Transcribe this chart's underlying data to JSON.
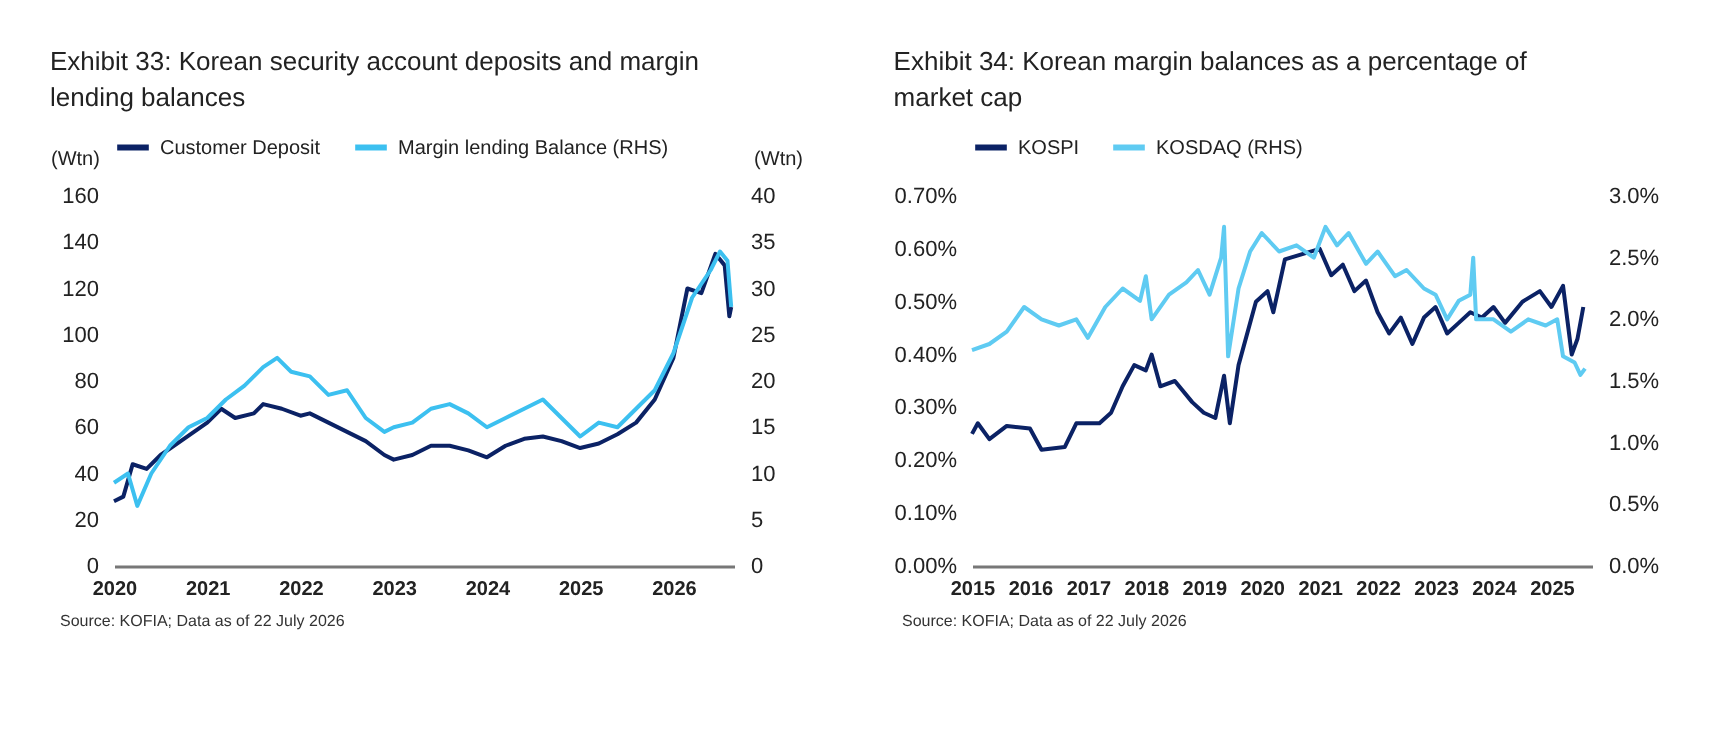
{
  "chart_data": [
    {
      "type": "line",
      "title": "Exhibit 33:  Korean security account deposits and margin lending balances",
      "ylabel": "(Wtn)",
      "y2label": "(Wtn)",
      "legend": "top",
      "grid": false,
      "marker": "none",
      "line_style": "solid",
      "xlim": [
        2020,
        2026.65
      ],
      "xticks": [
        2020,
        2021,
        2022,
        2023,
        2024,
        2025,
        2026
      ],
      "ylim": [
        0,
        160
      ],
      "yticks": [
        0,
        20,
        40,
        60,
        80,
        100,
        120,
        140,
        160
      ],
      "y2lim": [
        0,
        40
      ],
      "y2ticks": [
        0,
        5,
        10,
        15,
        20,
        25,
        30,
        35,
        40
      ],
      "series": [
        {
          "name": "Customer Deposit",
          "color": "#0b2265",
          "x": [
            2020.0,
            2020.1,
            2020.2,
            2020.35,
            2020.5,
            2020.75,
            2021.0,
            2021.15,
            2021.3,
            2021.5,
            2021.6,
            2021.8,
            2022.0,
            2022.1,
            2022.3,
            2022.5,
            2022.7,
            2022.9,
            2023.0,
            2023.2,
            2023.4,
            2023.6,
            2023.8,
            2024.0,
            2024.2,
            2024.4,
            2024.6,
            2024.8,
            2025.0,
            2025.2,
            2025.4,
            2025.6,
            2025.8,
            2026.0,
            2026.15,
            2026.3,
            2026.45,
            2026.55,
            2026.6,
            2026.62
          ],
          "values": [
            28,
            30,
            44,
            42,
            48,
            55,
            62,
            68,
            64,
            66,
            70,
            68,
            65,
            66,
            62,
            58,
            54,
            48,
            46,
            48,
            52,
            52,
            50,
            47,
            52,
            55,
            56,
            54,
            51,
            53,
            57,
            62,
            72,
            90,
            120,
            118,
            135,
            130,
            108,
            112
          ]
        },
        {
          "name": "Margin lending Balance (RHS)",
          "color": "#3cc0f0",
          "axis": "y2",
          "x": [
            2020.0,
            2020.15,
            2020.25,
            2020.4,
            2020.6,
            2020.8,
            2021.0,
            2021.2,
            2021.4,
            2021.6,
            2021.75,
            2021.9,
            2022.1,
            2022.3,
            2022.5,
            2022.7,
            2022.9,
            2023.0,
            2023.2,
            2023.4,
            2023.6,
            2023.8,
            2024.0,
            2024.2,
            2024.4,
            2024.6,
            2024.8,
            2025.0,
            2025.2,
            2025.4,
            2025.6,
            2025.8,
            2026.0,
            2026.2,
            2026.4,
            2026.5,
            2026.58,
            2026.62
          ],
          "values": [
            9,
            10,
            6.5,
            10,
            13,
            15,
            16,
            18,
            19.5,
            21.5,
            22.5,
            21,
            20.5,
            18.5,
            19,
            16,
            14.5,
            15,
            15.5,
            17,
            17.5,
            16.5,
            15,
            16,
            17,
            18,
            16,
            14,
            15.5,
            15,
            17,
            19,
            23,
            29,
            32,
            34,
            33,
            28
          ]
        }
      ],
      "annotations": [
        "Source: KOFIA; Data as of 22 July 2026"
      ]
    },
    {
      "type": "line",
      "title": "Exhibit 34:  Korean margin balances as a percentage of market cap",
      "legend": "top",
      "grid": false,
      "marker": "none",
      "line_style": "solid",
      "xlim": [
        2015,
        2025.7
      ],
      "xticks": [
        2015,
        2016,
        2017,
        2018,
        2019,
        2020,
        2021,
        2022,
        2023,
        2024,
        2025
      ],
      "ylim": [
        0,
        0.7
      ],
      "yticks": [
        {
          "value": 0,
          "label": "0.00%"
        },
        {
          "value": 0.1,
          "label": "0.10%"
        },
        {
          "value": 0.2,
          "label": "0.20%"
        },
        {
          "value": 0.3,
          "label": "0.30%"
        },
        {
          "value": 0.4,
          "label": "0.40%"
        },
        {
          "value": 0.5,
          "label": "0.50%"
        },
        {
          "value": 0.6,
          "label": "0.60%"
        },
        {
          "value": 0.7,
          "label": "0.70%"
        }
      ],
      "y2lim": [
        0,
        3
      ],
      "y2ticks": [
        {
          "value": 0,
          "label": "0.0%"
        },
        {
          "value": 0.5,
          "label": "0.5%"
        },
        {
          "value": 1,
          "label": "1.0%"
        },
        {
          "value": 1.5,
          "label": "1.5%"
        },
        {
          "value": 2,
          "label": "2.0%"
        },
        {
          "value": 2.5,
          "label": "2.5%"
        },
        {
          "value": 3,
          "label": "3.0%"
        }
      ],
      "series": [
        {
          "name": "KOSPI",
          "color": "#0b2265",
          "x": [
            2015.0,
            2015.1,
            2015.3,
            2015.6,
            2016.0,
            2016.2,
            2016.6,
            2016.8,
            2017.2,
            2017.4,
            2017.6,
            2017.8,
            2018.0,
            2018.1,
            2018.25,
            2018.5,
            2018.8,
            2019.0,
            2019.2,
            2019.35,
            2019.45,
            2019.6,
            2019.9,
            2020.1,
            2020.2,
            2020.4,
            2020.7,
            2021.0,
            2021.2,
            2021.4,
            2021.6,
            2021.8,
            2022.0,
            2022.2,
            2022.4,
            2022.6,
            2022.8,
            2023.0,
            2023.2,
            2023.4,
            2023.6,
            2023.8,
            2024.0,
            2024.2,
            2024.5,
            2024.8,
            2025.0,
            2025.2,
            2025.35,
            2025.45,
            2025.55
          ],
          "values": [
            0.25,
            0.27,
            0.24,
            0.265,
            0.26,
            0.22,
            0.225,
            0.27,
            0.27,
            0.29,
            0.34,
            0.38,
            0.37,
            0.4,
            0.34,
            0.35,
            0.31,
            0.29,
            0.28,
            0.36,
            0.27,
            0.38,
            0.5,
            0.52,
            0.48,
            0.58,
            0.59,
            0.6,
            0.55,
            0.57,
            0.52,
            0.54,
            0.48,
            0.44,
            0.47,
            0.42,
            0.47,
            0.49,
            0.44,
            0.46,
            0.48,
            0.47,
            0.49,
            0.46,
            0.5,
            0.52,
            0.49,
            0.53,
            0.4,
            0.43,
            0.49
          ]
        },
        {
          "name": "KOSDAQ (RHS)",
          "color": "#5fcbf2",
          "axis": "y2",
          "x": [
            2015.0,
            2015.3,
            2015.6,
            2015.9,
            2016.2,
            2016.5,
            2016.8,
            2017.0,
            2017.3,
            2017.6,
            2017.9,
            2018.0,
            2018.1,
            2018.4,
            2018.7,
            2018.9,
            2019.1,
            2019.3,
            2019.35,
            2019.42,
            2019.6,
            2019.8,
            2020.0,
            2020.3,
            2020.6,
            2020.9,
            2021.1,
            2021.3,
            2021.5,
            2021.8,
            2022.0,
            2022.3,
            2022.5,
            2022.8,
            2023.0,
            2023.2,
            2023.4,
            2023.6,
            2023.65,
            2023.7,
            2024.0,
            2024.3,
            2024.6,
            2024.9,
            2025.1,
            2025.2,
            2025.4,
            2025.5,
            2025.58
          ],
          "values": [
            1.75,
            1.8,
            1.9,
            2.1,
            2.0,
            1.95,
            2.0,
            1.85,
            2.1,
            2.25,
            2.15,
            2.35,
            2.0,
            2.2,
            2.3,
            2.4,
            2.2,
            2.5,
            2.75,
            1.7,
            2.25,
            2.55,
            2.7,
            2.55,
            2.6,
            2.5,
            2.75,
            2.6,
            2.7,
            2.45,
            2.55,
            2.35,
            2.4,
            2.25,
            2.2,
            2.0,
            2.15,
            2.2,
            2.5,
            2.0,
            2.0,
            1.9,
            2.0,
            1.95,
            2.0,
            1.7,
            1.65,
            1.55,
            1.6
          ]
        }
      ],
      "annotations": [
        "Source: KOFIA; Data as of 22 July 2026"
      ]
    }
  ]
}
